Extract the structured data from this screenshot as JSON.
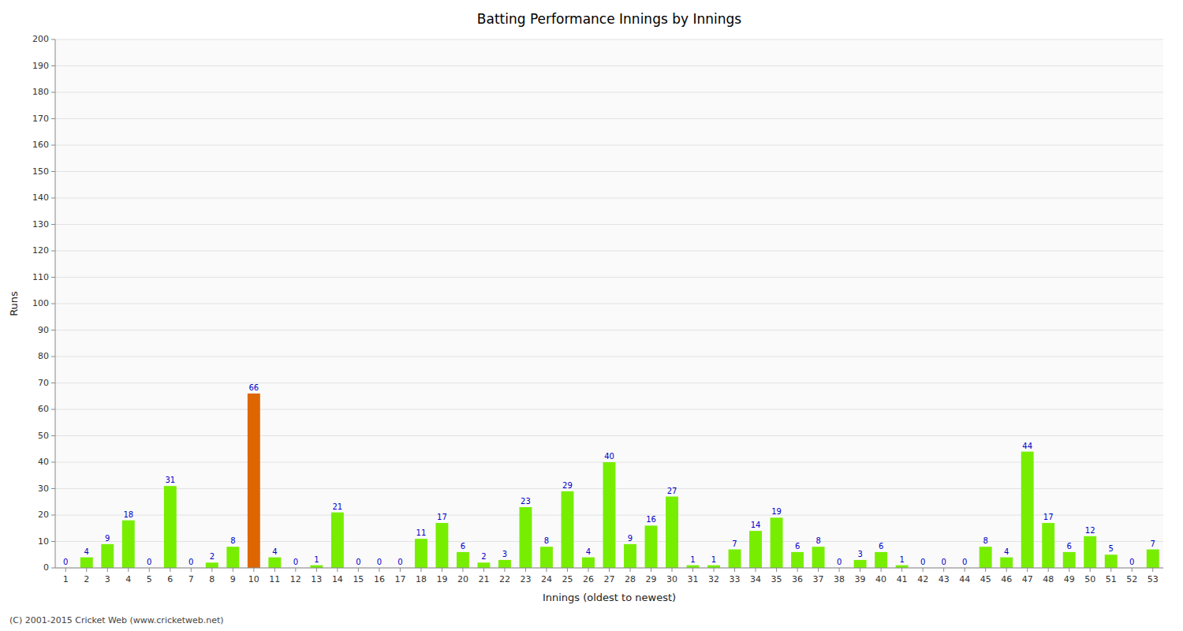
{
  "chart_data": {
    "type": "bar",
    "title": "Batting Performance Innings by Innings",
    "x_label": "Innings (oldest to newest)",
    "y_label": "Runs",
    "categories": [
      "1",
      "2",
      "3",
      "4",
      "5",
      "6",
      "7",
      "8",
      "9",
      "10",
      "11",
      "12",
      "13",
      "14",
      "15",
      "16",
      "17",
      "18",
      "19",
      "20",
      "21",
      "22",
      "23",
      "24",
      "25",
      "26",
      "27",
      "28",
      "29",
      "30",
      "31",
      "32",
      "33",
      "34",
      "35",
      "36",
      "37",
      "38",
      "39",
      "40",
      "41",
      "42",
      "43",
      "44",
      "45",
      "46",
      "47",
      "48",
      "49",
      "50",
      "51",
      "52",
      "53"
    ],
    "values": [
      0,
      4,
      9,
      18,
      0,
      31,
      0,
      2,
      8,
      66,
      4,
      0,
      1,
      21,
      0,
      0,
      0,
      11,
      17,
      6,
      2,
      3,
      23,
      8,
      29,
      4,
      40,
      9,
      16,
      27,
      1,
      1,
      7,
      14,
      19,
      6,
      8,
      0,
      3,
      6,
      1,
      0,
      0,
      0,
      8,
      4,
      44,
      17,
      6,
      12,
      5,
      0,
      7
    ],
    "colors": [
      "#77ee00",
      "#77ee00",
      "#77ee00",
      "#77ee00",
      "#77ee00",
      "#77ee00",
      "#77ee00",
      "#77ee00",
      "#77ee00",
      "#dd6600",
      "#77ee00",
      "#77ee00",
      "#77ee00",
      "#77ee00",
      "#77ee00",
      "#77ee00",
      "#77ee00",
      "#77ee00",
      "#77ee00",
      "#77ee00",
      "#77ee00",
      "#77ee00",
      "#77ee00",
      "#77ee00",
      "#77ee00",
      "#77ee00",
      "#77ee00",
      "#77ee00",
      "#77ee00",
      "#77ee00",
      "#77ee00",
      "#77ee00",
      "#77ee00",
      "#77ee00",
      "#77ee00",
      "#77ee00",
      "#77ee00",
      "#77ee00",
      "#77ee00",
      "#77ee00",
      "#77ee00",
      "#77ee00",
      "#77ee00",
      "#77ee00",
      "#77ee00",
      "#77ee00",
      "#77ee00",
      "#77ee00",
      "#77ee00",
      "#77ee00",
      "#77ee00",
      "#77ee00",
      "#77ee00"
    ],
    "ylim": [
      0,
      200
    ],
    "yticks": [
      0,
      10,
      20,
      30,
      40,
      50,
      60,
      70,
      80,
      90,
      100,
      110,
      120,
      130,
      140,
      150,
      160,
      170,
      180,
      190,
      200
    ],
    "grid": true,
    "data_labels": true,
    "annotations": [
      "(C) 2001-2015 Cricket Web (www.cricketweb.net)"
    ]
  }
}
